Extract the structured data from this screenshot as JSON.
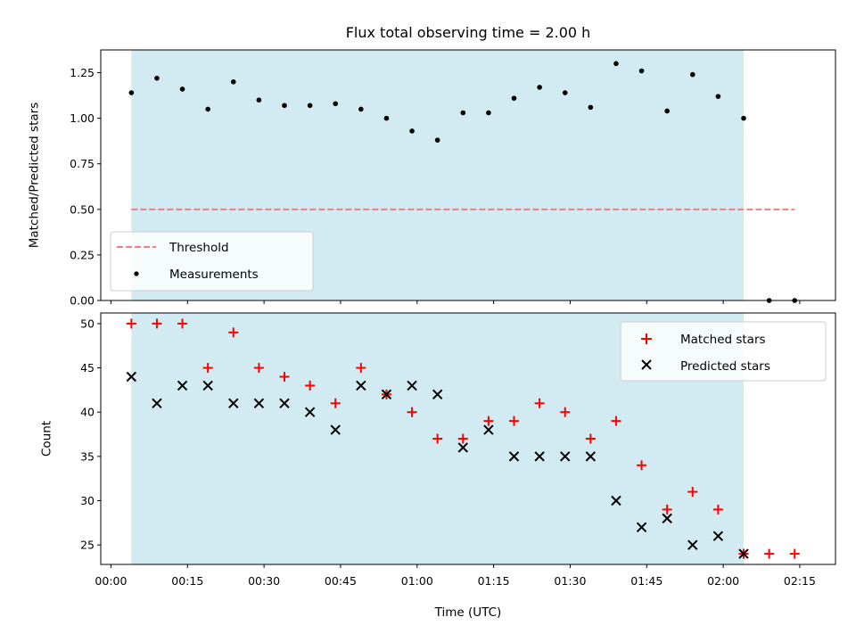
{
  "chart_data": [
    {
      "type": "scatter",
      "title": "Flux total observing time = 2.00 h",
      "ylabel": "Matched/Predicted stars",
      "xlabel": "",
      "ylim": [
        0,
        1.375
      ],
      "yticks": [
        "0.00",
        "0.25",
        "0.50",
        "0.75",
        "1.00",
        "1.25"
      ],
      "ytick_values": [
        0,
        0.25,
        0.5,
        0.75,
        1.0,
        1.25
      ],
      "shaded_span": [
        "00:04",
        "02:04"
      ],
      "legend_position": "lower-left",
      "series": [
        {
          "name": "Threshold",
          "kind": "dashed-line",
          "color": "#f08080",
          "x": [
            "00:04",
            "02:14"
          ],
          "values": [
            0.5,
            0.5
          ]
        },
        {
          "name": "Measurements",
          "kind": "dot",
          "color": "#000000",
          "x": [
            "00:04",
            "00:09",
            "00:14",
            "00:19",
            "00:24",
            "00:29",
            "00:34",
            "00:39",
            "00:44",
            "00:49",
            "00:54",
            "00:59",
            "01:04",
            "01:09",
            "01:14",
            "01:19",
            "01:24",
            "01:29",
            "01:34",
            "01:39",
            "01:44",
            "01:49",
            "01:54",
            "01:59",
            "02:04",
            "02:09",
            "02:14"
          ],
          "values": [
            1.14,
            1.22,
            1.16,
            1.05,
            1.2,
            1.1,
            1.07,
            1.07,
            1.08,
            1.05,
            1.0,
            0.93,
            0.88,
            1.03,
            1.03,
            1.11,
            1.17,
            1.14,
            1.06,
            1.3,
            1.26,
            1.04,
            1.24,
            1.12,
            1.0,
            0.0,
            0.0
          ]
        }
      ]
    },
    {
      "type": "scatter",
      "xlabel": "Time (UTC)",
      "ylabel": "Count",
      "ylim": [
        22.8,
        51.2
      ],
      "yticks": [
        "25",
        "30",
        "35",
        "40",
        "45",
        "50"
      ],
      "ytick_values": [
        25,
        30,
        35,
        40,
        45,
        50
      ],
      "xlim": [
        "-00:02",
        "02:22"
      ],
      "xticks": [
        "00:00",
        "00:15",
        "00:30",
        "00:45",
        "01:00",
        "01:15",
        "01:30",
        "01:45",
        "02:00",
        "02:15"
      ],
      "shaded_span": [
        "00:04",
        "02:04"
      ],
      "legend_position": "upper-right",
      "series": [
        {
          "name": "Matched stars",
          "marker": "plus",
          "color": "#ff0000",
          "x": [
            "00:04",
            "00:09",
            "00:14",
            "00:19",
            "00:24",
            "00:29",
            "00:34",
            "00:39",
            "00:44",
            "00:49",
            "00:54",
            "00:59",
            "01:04",
            "01:09",
            "01:14",
            "01:19",
            "01:24",
            "01:29",
            "01:34",
            "01:39",
            "01:44",
            "01:49",
            "01:54",
            "01:59",
            "02:04",
            "02:09",
            "02:14"
          ],
          "values": [
            50,
            50,
            50,
            45,
            49,
            45,
            44,
            43,
            41,
            45,
            42,
            40,
            37,
            37,
            39,
            39,
            41,
            40,
            37,
            39,
            34,
            29,
            31,
            29,
            24,
            24,
            24
          ]
        },
        {
          "name": "Predicted stars",
          "marker": "x",
          "color": "#000000",
          "x": [
            "00:04",
            "00:09",
            "00:14",
            "00:19",
            "00:24",
            "00:29",
            "00:34",
            "00:39",
            "00:44",
            "00:49",
            "00:54",
            "00:59",
            "01:04",
            "01:09",
            "01:14",
            "01:19",
            "01:24",
            "01:29",
            "01:34",
            "01:39",
            "01:44",
            "01:49",
            "01:54",
            "01:59",
            "02:04"
          ],
          "values": [
            44,
            41,
            43,
            43,
            41,
            41,
            41,
            40,
            38,
            43,
            42,
            43,
            42,
            36,
            38,
            35,
            35,
            35,
            35,
            30,
            27,
            28,
            25,
            26,
            24
          ]
        }
      ]
    }
  ],
  "colors": {
    "shade": "#add8e6",
    "threshold": "#f08080",
    "matched": "#ff0000",
    "predicted": "#000000"
  }
}
